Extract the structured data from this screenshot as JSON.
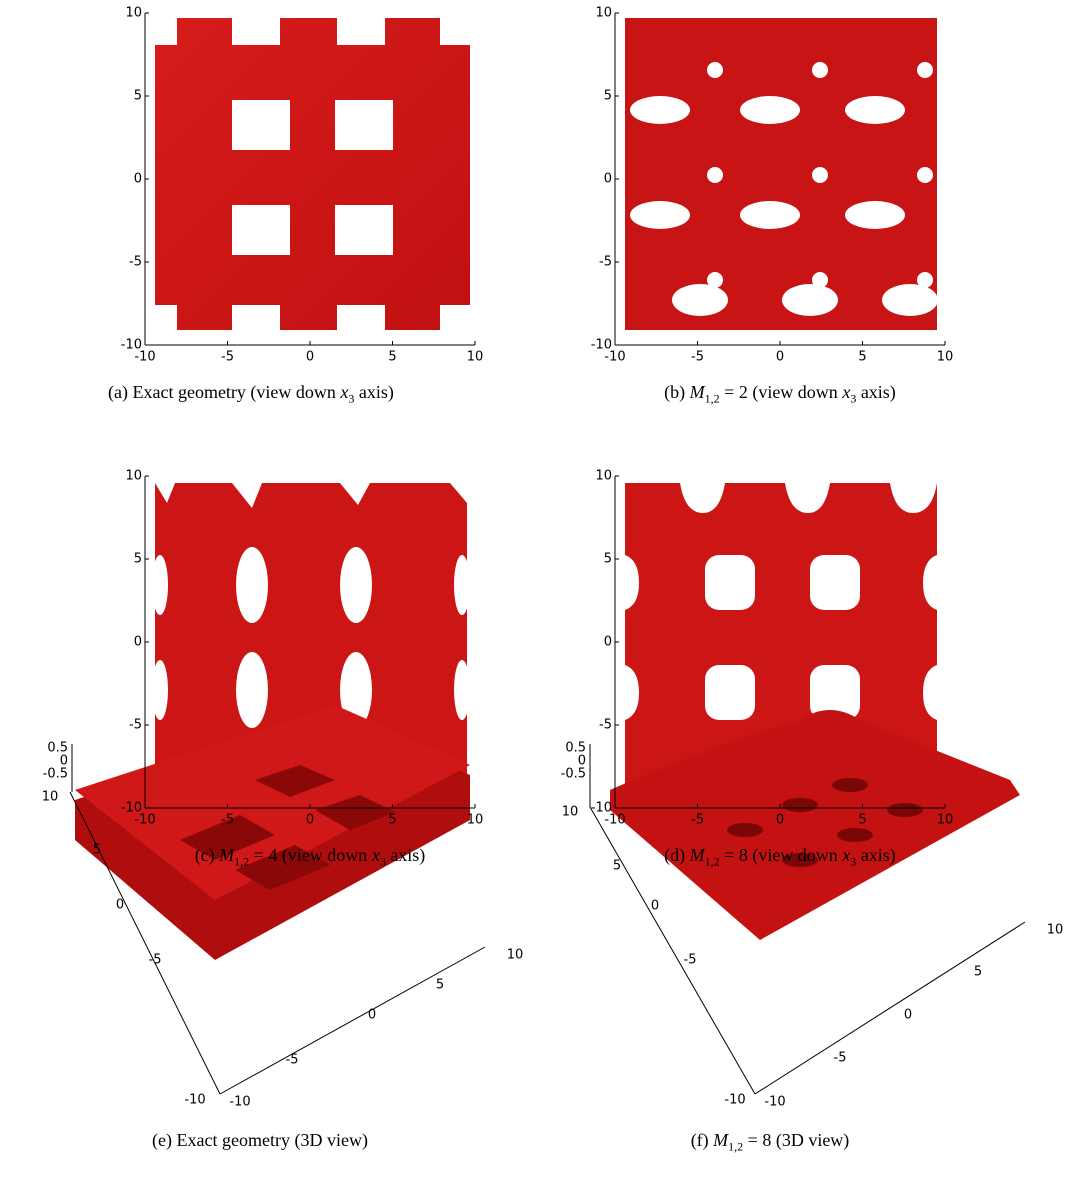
{
  "panels": [
    {
      "caption": [
        {
          "text": "(a)  Exact geometry (view down "
        },
        {
          "text": "x",
          "math": true
        },
        {
          "text": "3",
          "sub": true
        },
        {
          "text": " axis)"
        }
      ],
      "xticks": [
        -10,
        -5,
        0,
        5,
        10
      ],
      "yticks": [
        -10,
        -5,
        0,
        5,
        10
      ]
    },
    {
      "caption": [
        {
          "text": "(b) "
        },
        {
          "text": "M",
          "math": true
        },
        {
          "text": "1,2",
          "sub": true
        },
        {
          "text": " = 2 (view down "
        },
        {
          "text": "x",
          "math": true
        },
        {
          "text": "3",
          "sub": true
        },
        {
          "text": " axis)"
        }
      ],
      "xticks": [
        -10,
        -5,
        0,
        5,
        10
      ],
      "yticks": [
        -10,
        -5,
        0,
        5,
        10
      ]
    },
    {
      "caption": [
        {
          "text": "(c) "
        },
        {
          "text": "M",
          "math": true
        },
        {
          "text": "1,2",
          "sub": true
        },
        {
          "text": " = 4 (view down "
        },
        {
          "text": "x",
          "math": true
        },
        {
          "text": "3",
          "sub": true
        },
        {
          "text": " axis)"
        }
      ],
      "xticks": [
        -10,
        -5,
        0,
        5,
        10
      ],
      "yticks": [
        -10,
        -5,
        0,
        5,
        10
      ]
    },
    {
      "caption": [
        {
          "text": "(d) "
        },
        {
          "text": "M",
          "math": true
        },
        {
          "text": "1,2",
          "sub": true
        },
        {
          "text": " = 8 (view down "
        },
        {
          "text": "x",
          "math": true
        },
        {
          "text": "3",
          "sub": true
        },
        {
          "text": " axis)"
        }
      ],
      "xticks": [
        -10,
        -5,
        0,
        5,
        10
      ],
      "yticks": [
        -10,
        -5,
        0,
        5,
        10
      ]
    },
    {
      "caption": [
        {
          "text": "(e) Exact geometry (3D view)"
        }
      ],
      "xticks": [
        -10,
        -5,
        0,
        5,
        10
      ],
      "yticks": [
        10,
        5,
        0,
        -5,
        -10
      ],
      "zticks": [
        0.5,
        0,
        -0.5
      ]
    },
    {
      "caption": [
        {
          "text": "(f) "
        },
        {
          "text": "M",
          "math": true
        },
        {
          "text": "1,2",
          "sub": true
        },
        {
          "text": " = 8 (3D view)"
        }
      ],
      "xticks": [
        -10,
        -5,
        0,
        5,
        10
      ],
      "yticks": [
        10,
        5,
        0,
        -5,
        -10
      ],
      "zticks": [
        0.5,
        0,
        -0.5
      ]
    }
  ]
}
